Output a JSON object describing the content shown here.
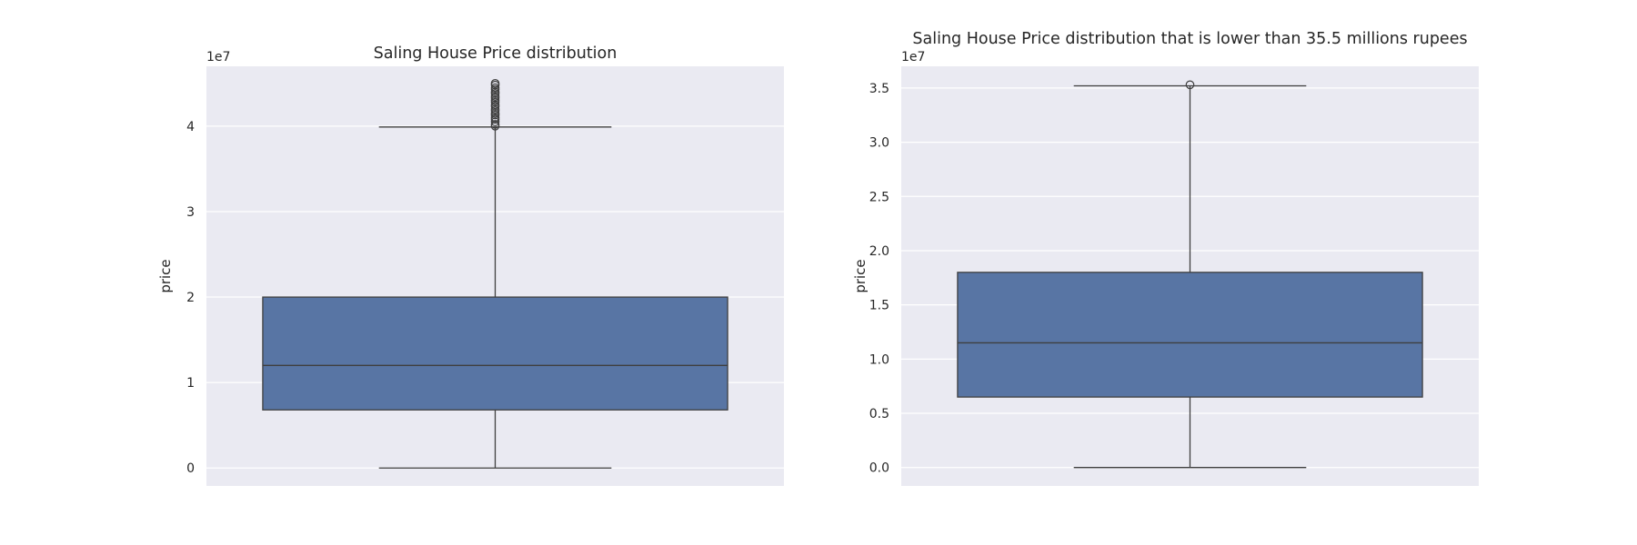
{
  "chart_data": [
    {
      "type": "box",
      "title": "Saling House Price distribution",
      "ylabel": "price",
      "xlabel": "",
      "offset_text": "1e7",
      "ylim": [
        -0.21,
        4.7
      ],
      "yticks": [
        0,
        1,
        2,
        3,
        4
      ],
      "ytick_labels": [
        "0",
        "1",
        "2",
        "3",
        "4"
      ],
      "grid": true,
      "box": {
        "whisker_low": 0.0,
        "q1": 0.68,
        "median": 1.2,
        "q3": 2.0,
        "whisker_high": 3.99
      },
      "outliers": [
        4.0,
        4.02,
        4.05,
        4.08,
        4.1,
        4.13,
        4.15,
        4.18,
        4.2,
        4.23,
        4.25,
        4.28,
        4.3,
        4.33,
        4.35,
        4.38,
        4.4,
        4.43,
        4.45,
        4.48,
        4.5
      ],
      "color": "#5875a4"
    },
    {
      "type": "box",
      "title": "Saling House Price distribution that is lower than 35.5 millions rupees",
      "ylabel": "price",
      "xlabel": "",
      "offset_text": "1e7",
      "ylim": [
        -0.17,
        3.7
      ],
      "yticks": [
        0.0,
        0.5,
        1.0,
        1.5,
        2.0,
        2.5,
        3.0,
        3.5
      ],
      "ytick_labels": [
        "0.0",
        "0.5",
        "1.0",
        "1.5",
        "2.0",
        "2.5",
        "3.0",
        "3.5"
      ],
      "grid": true,
      "box": {
        "whisker_low": 0.0,
        "q1": 0.65,
        "median": 1.15,
        "q3": 1.8,
        "whisker_high": 3.52
      },
      "outliers": [
        3.53
      ],
      "color": "#5875a4"
    }
  ]
}
